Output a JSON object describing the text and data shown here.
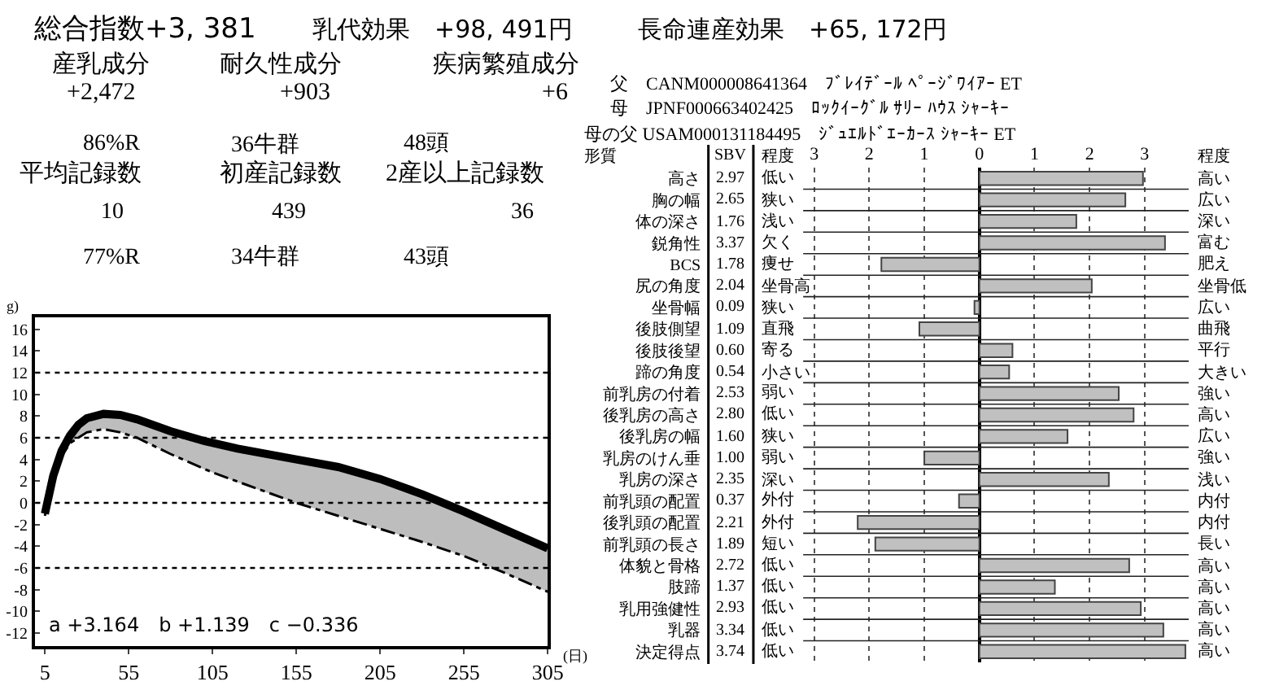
{
  "chart_data": [
    {
      "type": "other",
      "title": "総合指数+3, 381",
      "annotations": [
        "乳代効果　+98, 491円",
        "長命連産効果　+65, 172円",
        "産乳成分",
        "耐久性成分",
        "疾病繁殖成分",
        "+2,472",
        "+903",
        "+6",
        "86%R",
        "36牛群",
        "48頭",
        "平均記録数",
        "初産記録数",
        "2産以上記録数",
        "10",
        "439",
        "36",
        "77%R",
        "34牛群",
        "43頭",
        "父　CANM000008641364　ﾌﾞﾚｲﾃﾞｰﾙ ﾍﾟｰｼﾞﾜｲｱｰ ET",
        "母　JPNF000663402425　ﾛｯｸｲｰｸﾞﾙ ｻﾘｰ ﾊｳｽ ｼｬｰｷｰ",
        "母の父 USAM000131184495　ｼﾞｭｴﾙﾄﾞｴｰｶｰｽ ｼｬｰｷｰ ET"
      ]
    },
    {
      "type": "line",
      "xlabel": "(日)",
      "ylabel": "g)",
      "xlim": [
        -0.7,
        305
      ],
      "ylim": [
        -13.2,
        17.1
      ],
      "xticks": [
        5,
        55,
        105,
        155,
        205,
        255,
        305
      ],
      "yticks": [
        16,
        14,
        12,
        10,
        8,
        6,
        4,
        2,
        0,
        -2,
        -4,
        -6,
        -8,
        -10,
        -12
      ],
      "grid": false,
      "ref_lines": [
        {
          "axis": "y",
          "value": 12,
          "line_style": "dotted"
        },
        {
          "axis": "y",
          "value": 6,
          "line_style": "dotted"
        },
        {
          "axis": "y",
          "value": 0,
          "line_style": "dotted"
        },
        {
          "axis": "y",
          "value": -6,
          "line_style": "dotted"
        }
      ],
      "annotations": [
        "a +3.164　b +1.139　c −0.336"
      ],
      "series": [
        {
          "color": "#000000",
          "line_style": "solid",
          "x": [
            5,
            10,
            15,
            20,
            25,
            30,
            40,
            50,
            60,
            80,
            100,
            120,
            155,
            180,
            205,
            230,
            255,
            280,
            305
          ],
          "values": [
            -1.0,
            2.5,
            4.8,
            6.2,
            7.2,
            7.8,
            8.2,
            8.1,
            7.7,
            6.6,
            5.7,
            5.0,
            4.0,
            3.3,
            2.2,
            0.8,
            -0.8,
            -2.5,
            -4.2
          ],
          "lower": [
            -1.2,
            2.3,
            4.3,
            5.5,
            6.1,
            6.5,
            6.8,
            6.5,
            6.0,
            4.5,
            3.1,
            1.9,
            0.0,
            -1.2,
            -2.4,
            -3.6,
            -4.9,
            -6.5,
            -8.2
          ],
          "upper": [
            -1.0,
            2.5,
            4.8,
            6.2,
            7.2,
            7.8,
            8.2,
            8.1,
            7.7,
            6.6,
            5.7,
            5.0,
            4.0,
            3.3,
            2.2,
            0.8,
            -0.8,
            -2.5,
            -4.2
          ]
        },
        {
          "color": "#000000",
          "line_style": "dashed",
          "x": [
            5,
            10,
            15,
            20,
            30,
            40,
            50,
            60,
            80,
            105,
            130,
            155,
            180,
            205,
            230,
            255,
            280,
            305
          ],
          "values": [
            -1.2,
            2.3,
            4.3,
            5.5,
            6.5,
            6.8,
            6.5,
            6.0,
            4.5,
            2.8,
            1.4,
            0.0,
            -1.2,
            -2.4,
            -3.6,
            -4.9,
            -6.5,
            -8.2
          ]
        }
      ]
    },
    {
      "type": "bar",
      "orientation": "horizontal",
      "color": "#c0c0c0",
      "grid": "x",
      "xlim": [
        -3.2,
        3.8
      ],
      "xticks": [
        {
          "value": -3,
          "label": "3"
        },
        {
          "value": -2,
          "label": "2"
        },
        {
          "value": -1,
          "label": "1"
        },
        0,
        1,
        2,
        3
      ],
      "categories": [
        "高さ",
        "胸の幅",
        "体の深さ",
        "鋭角性",
        "BCS",
        "尻の角度",
        "坐骨幅",
        "後肢側望",
        "後肢後望",
        "蹄の角度",
        "前乳房の付着",
        "後乳房の高さ",
        "後乳房の幅",
        "乳房のけん垂",
        "乳房の深さ",
        "前乳頭の配置",
        "後乳頭の配置",
        "前乳頭の長さ",
        "体貌と骨格",
        "肢蹄",
        "乳用強健性",
        "乳器",
        "決定得点"
      ],
      "values": [
        2.97,
        2.65,
        1.76,
        3.37,
        -1.78,
        2.04,
        -0.09,
        -1.09,
        0.6,
        0.54,
        2.53,
        2.8,
        1.6,
        -1.0,
        2.35,
        -0.37,
        -2.21,
        -1.89,
        2.72,
        1.37,
        2.93,
        3.34,
        3.74
      ],
      "annotations": [
        "形質",
        "SBV",
        "程度",
        "程度",
        "2.97",
        "低い",
        "高い",
        "2.65",
        "狭い",
        "広い",
        "1.76",
        "浅い",
        "深い",
        "3.37",
        "欠く",
        "富む",
        "1.78",
        "痩せ",
        "肥え",
        "2.04",
        "坐骨高",
        "坐骨低",
        "0.09",
        "狭い",
        "広い",
        "1.09",
        "直飛",
        "曲飛",
        "0.60",
        "寄る",
        "平行",
        "0.54",
        "小さい",
        "大きい",
        "2.53",
        "弱い",
        "強い",
        "2.80",
        "低い",
        "高い",
        "1.60",
        "狭い",
        "広い",
        "1.00",
        "弱い",
        "強い",
        "2.35",
        "深い",
        "浅い",
        "0.37",
        "外付",
        "内付",
        "2.21",
        "外付",
        "内付",
        "1.89",
        "短い",
        "長い",
        "2.72",
        "低い",
        "高い",
        "1.37",
        "低い",
        "高い",
        "2.93",
        "低い",
        "高い",
        "3.34",
        "低い",
        "高い",
        "3.74",
        "低い",
        "高い"
      ]
    }
  ]
}
